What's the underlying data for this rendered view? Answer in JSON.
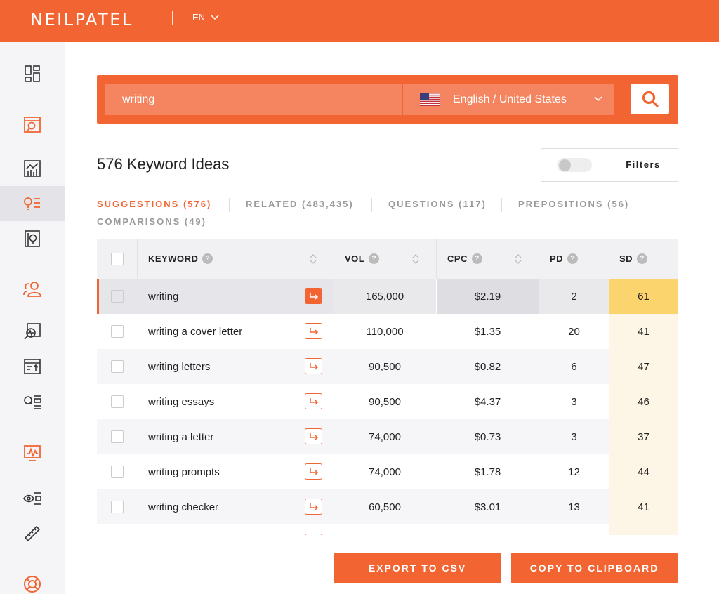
{
  "header": {
    "logo": "NEILPATEL",
    "language": "EN",
    "colors": {
      "brand": "#f26532"
    }
  },
  "sidebar": {
    "items": [
      {
        "icon": "dashboard-icon",
        "active": false
      },
      {
        "icon": "site-audit-icon",
        "active": false
      },
      {
        "icon": "traffic-analyzer-icon",
        "active": false
      },
      {
        "icon": "keyword-ideas-icon",
        "active": true
      },
      {
        "icon": "content-ideas-icon",
        "active": false
      },
      {
        "icon": "users-icon",
        "active": false
      },
      {
        "icon": "rank-tracker-icon",
        "active": false
      },
      {
        "icon": "chart-board-icon",
        "active": false
      },
      {
        "icon": "search-list-icon",
        "active": false
      },
      {
        "icon": "activity-monitor-icon",
        "active": false
      },
      {
        "icon": "visibility-list-icon",
        "active": false
      },
      {
        "icon": "link-icon",
        "active": false
      },
      {
        "icon": "help-lifebuoy-icon",
        "active": false
      }
    ]
  },
  "search": {
    "query": "writing",
    "locale": "English / United States"
  },
  "results": {
    "title": "576 Keyword Ideas",
    "filters_label": "Filters"
  },
  "tabs": [
    {
      "label": "SUGGESTIONS (576)",
      "active": true
    },
    {
      "label": "RELATED (483,435)",
      "active": false
    },
    {
      "label": "QUESTIONS (117)",
      "active": false
    },
    {
      "label": "PREPOSITIONS (56)",
      "active": false
    },
    {
      "label": "COMPARISONS (49)",
      "active": false
    }
  ],
  "table": {
    "columns": [
      "KEYWORD",
      "VOL",
      "CPC",
      "PD",
      "SD"
    ],
    "rows": [
      {
        "keyword": "writing",
        "vol": "165,000",
        "cpc": "$2.19",
        "pd": "2",
        "sd": "61"
      },
      {
        "keyword": "writing a cover letter",
        "vol": "110,000",
        "cpc": "$1.35",
        "pd": "20",
        "sd": "41"
      },
      {
        "keyword": "writing letters",
        "vol": "90,500",
        "cpc": "$0.82",
        "pd": "6",
        "sd": "47"
      },
      {
        "keyword": "writing essays",
        "vol": "90,500",
        "cpc": "$4.37",
        "pd": "3",
        "sd": "46"
      },
      {
        "keyword": "writing a letter",
        "vol": "74,000",
        "cpc": "$0.73",
        "pd": "3",
        "sd": "37"
      },
      {
        "keyword": "writing prompts",
        "vol": "74,000",
        "cpc": "$1.78",
        "pd": "12",
        "sd": "44"
      },
      {
        "keyword": "writing checker",
        "vol": "60,500",
        "cpc": "$3.01",
        "pd": "13",
        "sd": "41"
      }
    ]
  },
  "actions": {
    "export": "EXPORT TO CSV",
    "copy": "COPY TO CLIPBOARD"
  }
}
